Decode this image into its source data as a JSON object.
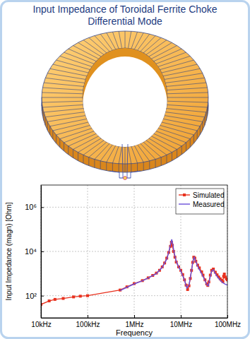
{
  "chart_data": {
    "type": "line",
    "title": "Input Impedance of Toroidal Ferrite Choke",
    "subtitle": "Differential Mode",
    "x_label": "Frequency",
    "y_label": "Input Impedance (magn) [Ohm]",
    "log": true,
    "grid": true,
    "legend": "top-right",
    "xlim": [
      10000,
      100000000
    ],
    "xticks": [
      {
        "value": 10000,
        "label": "10kHz"
      },
      {
        "value": 100000,
        "label": "100kHz"
      },
      {
        "value": 1000000,
        "label": "1MHz"
      },
      {
        "value": 10000000,
        "label": "10MHz"
      },
      {
        "value": 100000000,
        "label": "100MHz"
      }
    ],
    "ylim": [
      10,
      10000000
    ],
    "yticks": [
      {
        "value": 100,
        "label": "10²"
      },
      {
        "value": 10000,
        "label": "10⁴"
      },
      {
        "value": 1000000,
        "label": "10⁶"
      }
    ],
    "series": [
      {
        "name": "Simulated",
        "color": "#e8311e",
        "marker": "square",
        "line_style": "solid",
        "x": [
          10000,
          15000,
          20000,
          30000,
          50000,
          70000,
          100000,
          500000,
          700000,
          1000000,
          1500000,
          2000000,
          2500000,
          3000000,
          3500000,
          4000000,
          4500000,
          5000000,
          5500000,
          6000000,
          6300000,
          6600000,
          7000000,
          7500000,
          8000000,
          9000000,
          10000000,
          11000000,
          12000000,
          13000000,
          14000000,
          15000000,
          16000000,
          17000000,
          18000000,
          19000000,
          20000000,
          21000000,
          23000000,
          25000000,
          28000000,
          30000000,
          33000000,
          36000000,
          38000000,
          40000000,
          43000000,
          46000000,
          50000000,
          55000000,
          60000000,
          65000000,
          70000000,
          75000000,
          80000000,
          83000000,
          86000000,
          90000000,
          95000000,
          100000000
        ],
        "values": [
          40,
          58,
          68,
          75,
          88,
          95,
          100,
          180,
          250,
          350,
          480,
          640,
          820,
          1050,
          1400,
          2000,
          3000,
          5000,
          9000,
          17000,
          26000,
          19000,
          10000,
          5500,
          3300,
          2000,
          1400,
          900,
          520,
          300,
          190,
          280,
          600,
          1400,
          3200,
          5500,
          5000,
          3600,
          2400,
          1800,
          1200,
          850,
          520,
          340,
          290,
          420,
          850,
          1400,
          1600,
          1150,
          880,
          700,
          580,
          500,
          430,
          750,
          950,
          700,
          580,
          520
        ]
      },
      {
        "name": "Measured",
        "color": "#6a4fd8",
        "line_style": "solid",
        "x": [
          500000,
          700000,
          1000000,
          1500000,
          2000000,
          3000000,
          4000000,
          5000000,
          5500000,
          6000000,
          6400000,
          6800000,
          7200000,
          8000000,
          9000000,
          10000000,
          12000000,
          13500000,
          15000000,
          17000000,
          18500000,
          19500000,
          21000000,
          24000000,
          28000000,
          32000000,
          36000000,
          39000000,
          42000000,
          46000000,
          50000000,
          55000000,
          60000000,
          70000000,
          80000000,
          90000000,
          100000000
        ],
        "values": [
          170,
          240,
          340,
          470,
          630,
          1000,
          1900,
          4500,
          9000,
          20000,
          35000,
          18000,
          9000,
          3500,
          2000,
          1300,
          500,
          220,
          300,
          1400,
          4000,
          5500,
          3500,
          1800,
          1000,
          550,
          320,
          280,
          600,
          1300,
          1500,
          1000,
          750,
          500,
          380,
          330,
          300
        ]
      }
    ]
  }
}
